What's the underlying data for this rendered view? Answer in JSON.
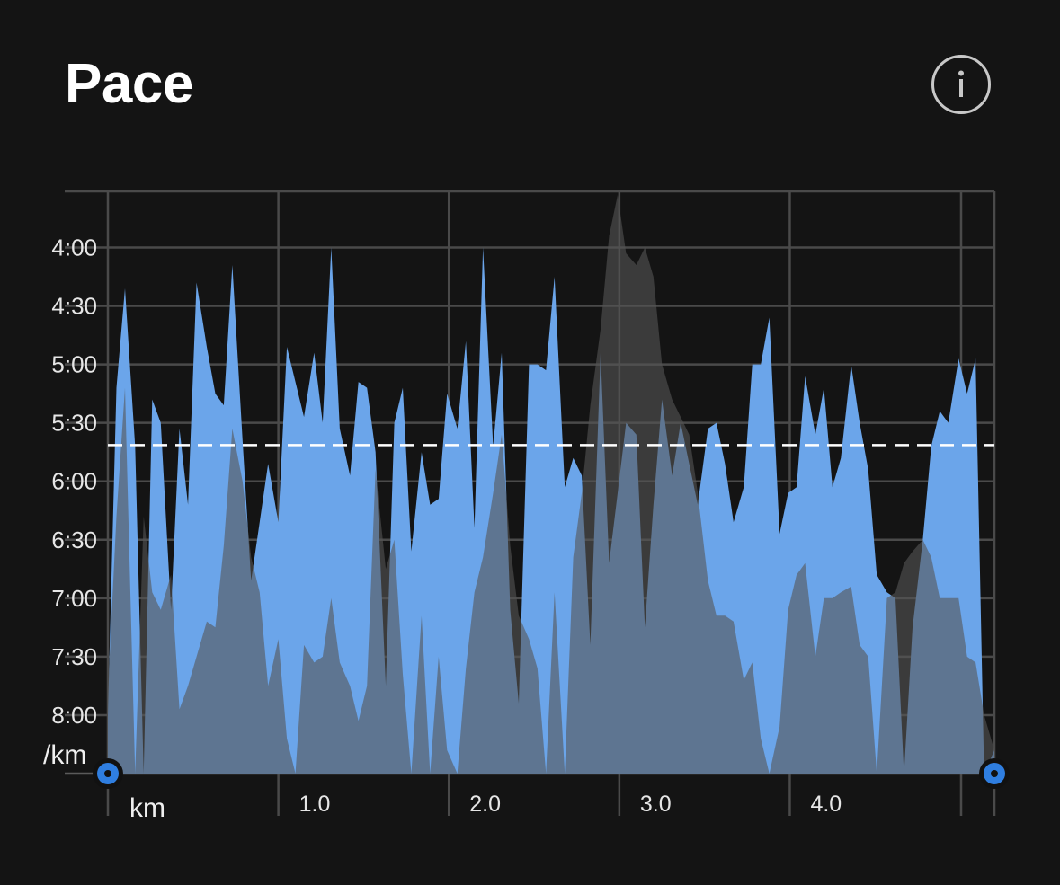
{
  "header": {
    "title": "Pace",
    "info_icon": "info-icon"
  },
  "colors": {
    "background": "#141414",
    "grid": "#4a4a4a",
    "pace_fill": "#6ba5ea",
    "elevation_fill": "#555555",
    "average_line": "#ffffff",
    "handle": "#2f7ee0"
  },
  "chart_data": {
    "type": "area",
    "xlabel": "km",
    "ylabel": "/km",
    "y_inverted": true,
    "y_unit": "min/km",
    "ylim": [
      8.5,
      3.52
    ],
    "xlim": [
      0,
      5.2
    ],
    "x_ticks": [
      {
        "value": 1.0,
        "label": "1.0"
      },
      {
        "value": 2.0,
        "label": "2.0"
      },
      {
        "value": 3.0,
        "label": "3.0"
      },
      {
        "value": 4.0,
        "label": "4.0"
      }
    ],
    "y_ticks": [
      {
        "value": 4.0,
        "label": "4:00"
      },
      {
        "value": 4.5,
        "label": "4:30"
      },
      {
        "value": 5.0,
        "label": "5:00"
      },
      {
        "value": 5.5,
        "label": "5:30"
      },
      {
        "value": 6.0,
        "label": "6:00"
      },
      {
        "value": 6.5,
        "label": "6:30"
      },
      {
        "value": 7.0,
        "label": "7:00"
      },
      {
        "value": 7.5,
        "label": "7:30"
      },
      {
        "value": 8.0,
        "label": "8:00"
      }
    ],
    "average_pace": 5.69,
    "x": [
      0.0,
      0.05,
      0.1,
      0.16,
      0.21,
      0.26,
      0.31,
      0.37,
      0.42,
      0.47,
      0.52,
      0.58,
      0.63,
      0.68,
      0.73,
      0.79,
      0.84,
      0.89,
      0.94,
      1.0,
      1.05,
      1.1,
      1.15,
      1.21,
      1.26,
      1.31,
      1.36,
      1.42,
      1.47,
      1.52,
      1.57,
      1.63,
      1.68,
      1.73,
      1.78,
      1.84,
      1.89,
      1.94,
      1.99,
      2.05,
      2.1,
      2.15,
      2.2,
      2.26,
      2.31,
      2.36,
      2.41,
      2.47,
      2.52,
      2.57,
      2.62,
      2.68,
      2.73,
      2.78,
      2.83,
      2.89,
      2.94,
      2.99,
      3.04,
      3.1,
      3.15,
      3.2,
      3.25,
      3.31,
      3.36,
      3.41,
      3.46,
      3.52,
      3.57,
      3.62,
      3.67,
      3.73,
      3.78,
      3.83,
      3.88,
      3.94,
      3.99,
      4.04,
      4.09,
      4.15,
      4.2,
      4.25,
      4.3,
      4.36,
      4.41,
      4.46,
      4.51,
      4.57,
      4.62,
      4.67,
      4.72,
      4.78,
      4.83,
      4.88,
      4.93,
      4.99,
      5.04,
      5.09,
      5.14,
      5.2
    ],
    "series": [
      {
        "values": [
          8.0,
          5.2,
          4.35,
          5.7,
          8.5,
          5.3,
          5.5,
          7.1,
          5.55,
          6.2,
          4.3,
          4.85,
          5.25,
          5.35,
          4.15,
          5.65,
          6.85,
          6.35,
          5.85,
          6.35,
          4.85,
          5.15,
          5.45,
          4.9,
          5.5,
          4.0,
          5.55,
          5.95,
          5.15,
          5.2,
          5.75,
          7.75,
          5.5,
          5.2,
          6.6,
          5.75,
          6.2,
          6.15,
          5.25,
          5.55,
          4.8,
          6.4,
          4.0,
          5.7,
          4.9,
          7.1,
          7.9,
          5.0,
          5.0,
          5.05,
          4.25,
          6.05,
          5.8,
          5.95,
          7.4,
          4.9,
          6.7,
          6.1,
          5.5,
          5.6,
          7.25,
          6.2,
          5.3,
          5.95,
          5.5,
          5.85,
          6.2,
          5.55,
          5.5,
          5.85,
          6.35,
          6.05,
          5.0,
          5.0,
          4.6,
          6.45,
          6.1,
          6.05,
          5.1,
          5.6,
          5.2,
          6.05,
          5.8,
          5.0,
          5.5,
          5.9,
          6.8,
          6.95,
          7.0,
          8.5,
          7.25,
          6.5,
          5.7,
          5.4,
          5.5,
          4.95,
          5.25,
          4.95,
          8.5,
          8.3
        ],
        "color": "#6ba5ea"
      },
      {
        "values": [
          7.8,
          6.3,
          5.2,
          8.5,
          6.3,
          6.95,
          7.1,
          6.8,
          7.95,
          7.75,
          7.5,
          7.2,
          7.25,
          6.55,
          5.55,
          6.0,
          6.65,
          6.95,
          7.75,
          7.35,
          8.2,
          8.5,
          7.4,
          7.55,
          7.5,
          7.0,
          7.55,
          7.75,
          8.05,
          7.75,
          5.9,
          6.75,
          6.5,
          7.65,
          8.5,
          7.15,
          8.5,
          7.5,
          8.3,
          8.5,
          7.6,
          6.95,
          6.65,
          6.1,
          5.6,
          6.55,
          7.15,
          7.35,
          7.6,
          8.5,
          6.95,
          8.5,
          6.65,
          6.1,
          5.35,
          4.7,
          3.9,
          3.55,
          4.05,
          4.15,
          4.0,
          4.25,
          5.0,
          5.3,
          5.45,
          5.6,
          6.1,
          6.85,
          7.15,
          7.15,
          7.2,
          7.7,
          7.55,
          8.2,
          8.5,
          8.1,
          7.1,
          6.8,
          6.7,
          7.5,
          7.0,
          7.0,
          6.95,
          6.9,
          7.4,
          7.5,
          8.5,
          7.0,
          6.95,
          6.7,
          6.6,
          6.5,
          6.65,
          7.0,
          7.0,
          7.0,
          7.5,
          7.55,
          8.0,
          8.3
        ],
        "color": "#555555"
      }
    ]
  }
}
